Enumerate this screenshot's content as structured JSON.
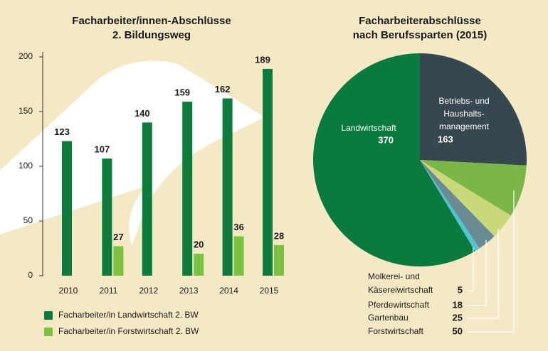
{
  "chart_data": [
    {
      "type": "bar",
      "title": "Facharbeiter/innen-Abschlüsse",
      "subtitle": "2. Bildungsweg",
      "categories": [
        "2010",
        "2011",
        "2012",
        "2013",
        "2014",
        "2015"
      ],
      "series": [
        {
          "name": "Facharbeiter/in Landwirtschaft 2. BW",
          "color": "#0e7a3c",
          "values": [
            123,
            107,
            140,
            159,
            162,
            189
          ]
        },
        {
          "name": "Facharbeiter/in Forstwirtschaft 2. BW",
          "color": "#7cc242",
          "values": [
            null,
            27,
            null,
            20,
            36,
            28
          ]
        }
      ],
      "ylim": [
        0,
        200
      ],
      "yticks": [
        0,
        50,
        100,
        150,
        200
      ],
      "legend": "bottom"
    },
    {
      "type": "pie",
      "title": "Facharbeiterabschlüsse\nnach Berufssparten (2015)",
      "categories": [
        "Betriebs- und\nHaushalts-\nmanagement",
        "Forstwirtschaft",
        "Gartenbau",
        "Pferdewirtschaft",
        "Molkerei- und\nKäsereiwirtschaft",
        "Landwirtschaft"
      ],
      "values": [
        163,
        50,
        25,
        18,
        5,
        370
      ],
      "colors": [
        "#37474f",
        "#7ab648",
        "#c9d97a",
        "#6a8a94",
        "#4fc6d2",
        "#0b7a3d"
      ]
    }
  ]
}
